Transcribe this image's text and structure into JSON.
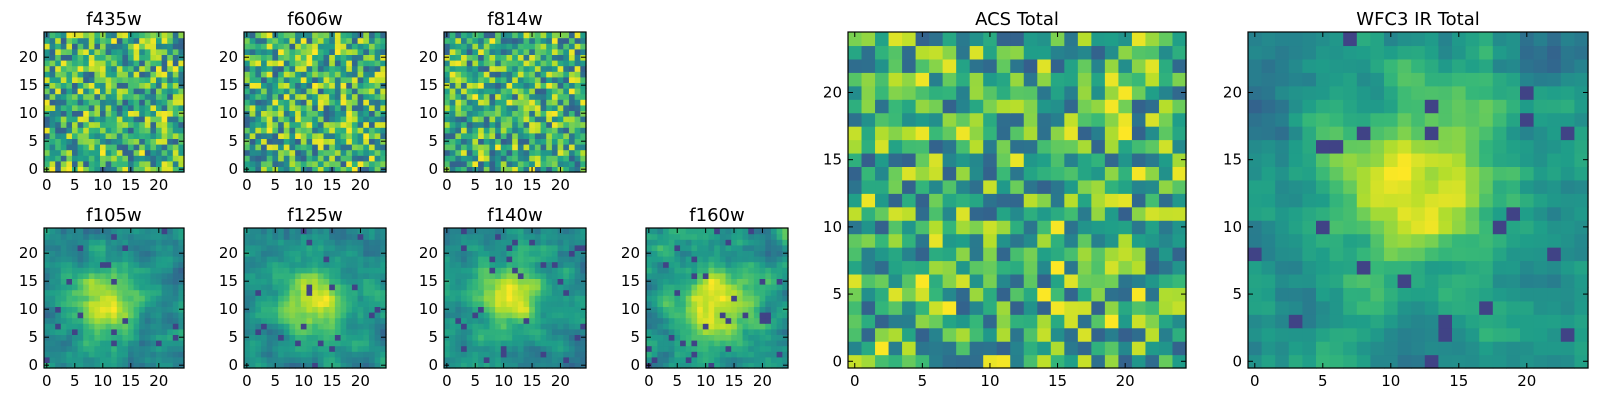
{
  "chart_data": {
    "type": "heatmap",
    "colormap": "viridis",
    "grid_size": [
      25,
      25
    ],
    "panels": [
      {
        "id": "f435w",
        "title": "f435w",
        "xticks": [
          0,
          5,
          10,
          15,
          20
        ],
        "yticks": [
          0,
          5,
          10,
          15,
          20
        ],
        "xlim": [
          -0.5,
          24.5
        ],
        "ylim": [
          -0.5,
          24.5
        ],
        "pattern": "noise",
        "seed": 435
      },
      {
        "id": "f606w",
        "title": "f606w",
        "xticks": [
          0,
          5,
          10,
          15,
          20
        ],
        "yticks": [
          0,
          5,
          10,
          15,
          20
        ],
        "xlim": [
          -0.5,
          24.5
        ],
        "ylim": [
          -0.5,
          24.5
        ],
        "pattern": "noise",
        "seed": 606
      },
      {
        "id": "f814w",
        "title": "f814w",
        "xticks": [
          0,
          5,
          10,
          15,
          20
        ],
        "yticks": [
          0,
          5,
          10,
          15,
          20
        ],
        "xlim": [
          -0.5,
          24.5
        ],
        "ylim": [
          -0.5,
          24.5
        ],
        "pattern": "noise",
        "seed": 814
      },
      {
        "id": "f105w",
        "title": "f105w",
        "xticks": [
          0,
          5,
          10,
          15,
          20
        ],
        "yticks": [
          0,
          5,
          10,
          15,
          20
        ],
        "xlim": [
          -0.5,
          24.5
        ],
        "ylim": [
          -0.5,
          24.5
        ],
        "pattern": "source",
        "source_center": [
          10,
          11
        ],
        "seed": 105
      },
      {
        "id": "f125w",
        "title": "f125w",
        "xticks": [
          0,
          5,
          10,
          15,
          20
        ],
        "yticks": [
          0,
          5,
          10,
          15,
          20
        ],
        "xlim": [
          -0.5,
          24.5
        ],
        "ylim": [
          -0.5,
          24.5
        ],
        "pattern": "source",
        "source_center": [
          12,
          12
        ],
        "seed": 125
      },
      {
        "id": "f140w",
        "title": "f140w",
        "xticks": [
          0,
          5,
          10,
          15,
          20
        ],
        "yticks": [
          0,
          5,
          10,
          15,
          20
        ],
        "xlim": [
          -0.5,
          24.5
        ],
        "ylim": [
          -0.5,
          24.5
        ],
        "pattern": "source",
        "source_center": [
          11,
          12
        ],
        "seed": 140
      },
      {
        "id": "f160w",
        "title": "f160w",
        "xticks": [
          0,
          5,
          10,
          15,
          20
        ],
        "yticks": [
          0,
          5,
          10,
          15,
          20
        ],
        "xlim": [
          -0.5,
          24.5
        ],
        "ylim": [
          -0.5,
          24.5
        ],
        "pattern": "source",
        "source_center": [
          12,
          11
        ],
        "seed": 160
      },
      {
        "id": "acs-total",
        "title": "ACS Total",
        "xticks": [
          0,
          5,
          10,
          15,
          20
        ],
        "yticks": [
          0,
          5,
          10,
          15,
          20
        ],
        "xlim": [
          -0.5,
          24.5
        ],
        "ylim": [
          -0.5,
          24.5
        ],
        "pattern": "noise",
        "seed": 999
      },
      {
        "id": "wfc3-ir-total",
        "title": "WFC3 IR Total",
        "xticks": [
          0,
          5,
          10,
          15,
          20
        ],
        "yticks": [
          0,
          5,
          10,
          15,
          20
        ],
        "xlim": [
          -0.5,
          24.5
        ],
        "ylim": [
          -0.5,
          24.5
        ],
        "pattern": "source",
        "source_center": [
          12,
          13
        ],
        "seed": 777
      }
    ]
  }
}
